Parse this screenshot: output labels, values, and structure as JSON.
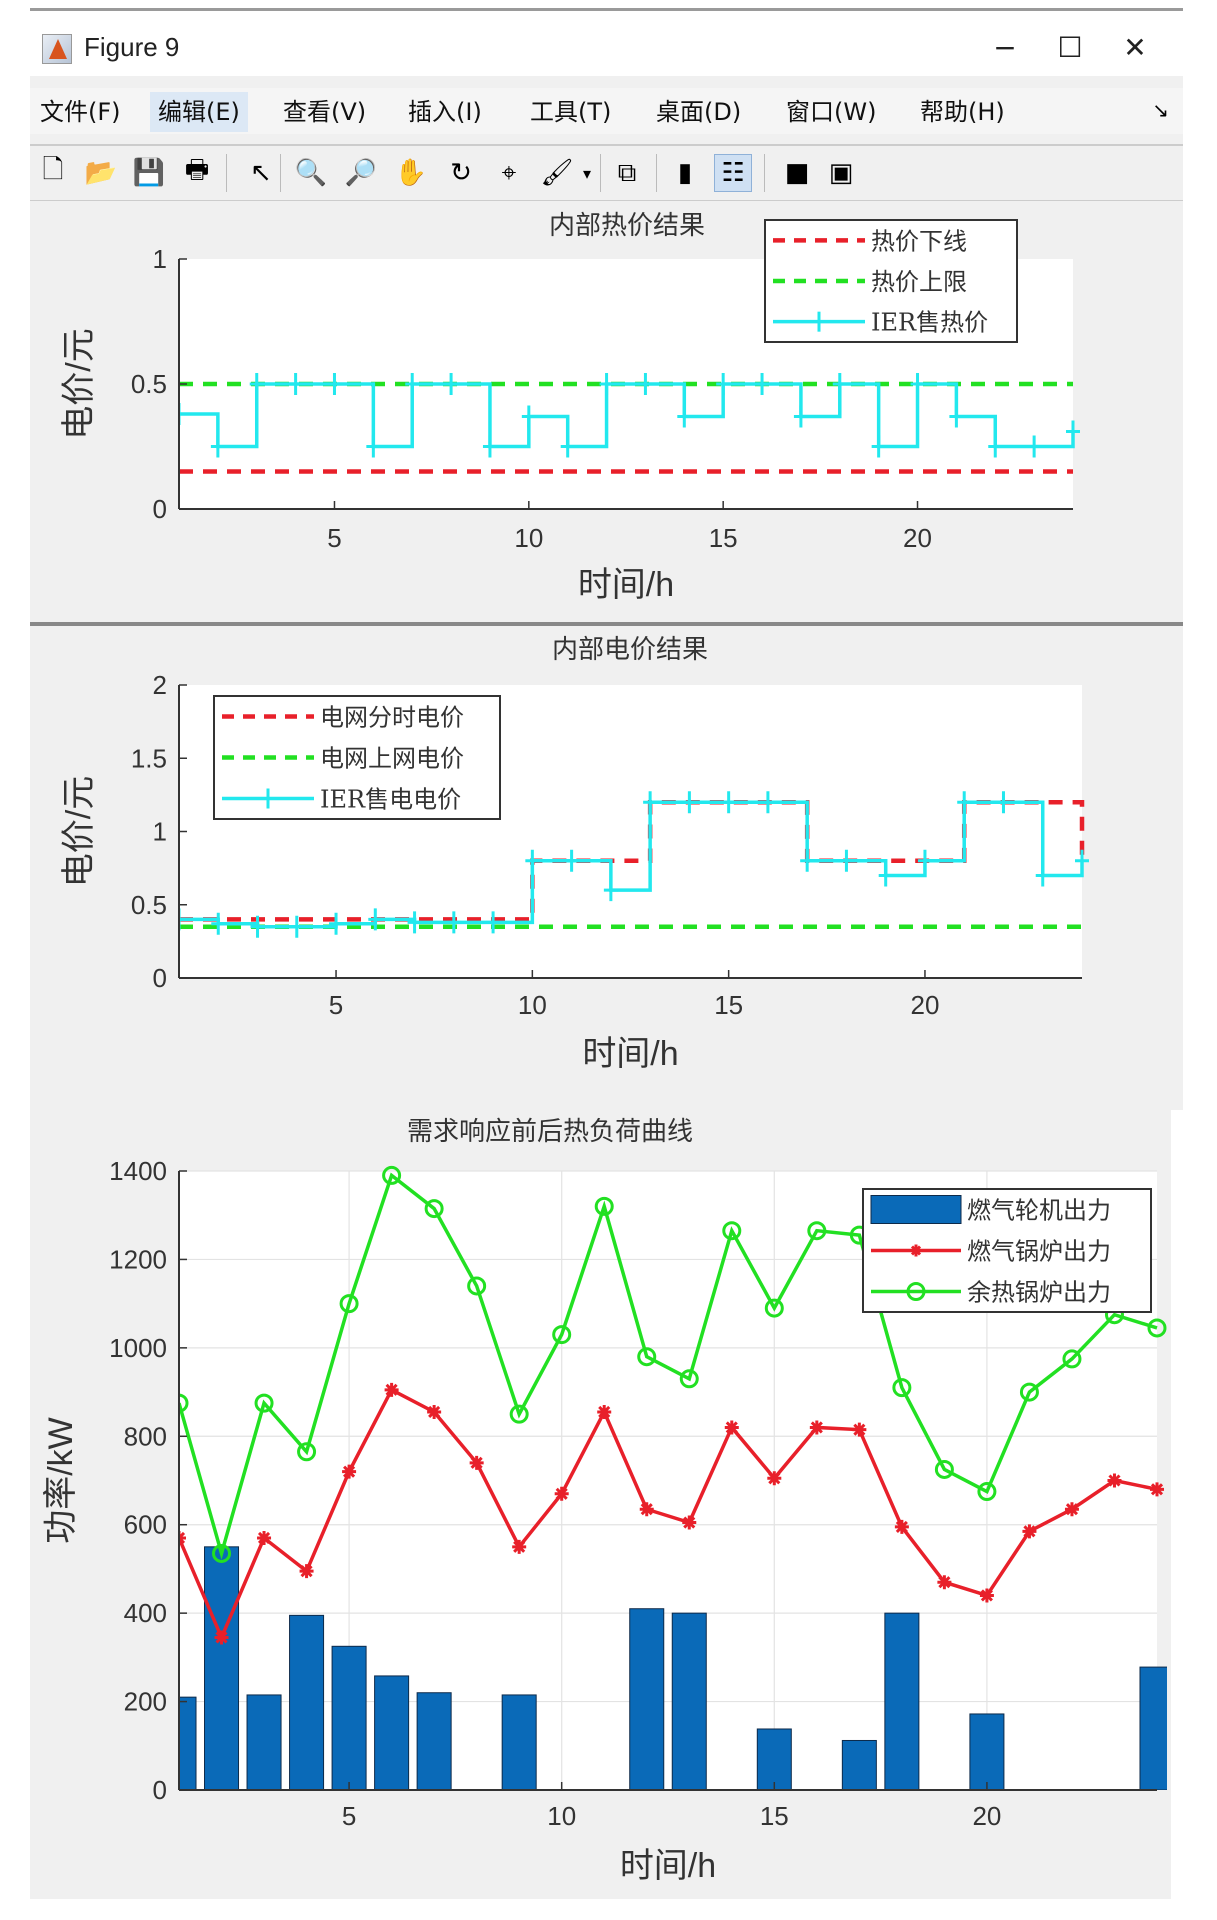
{
  "window": {
    "title": "Figure 9",
    "minimize": "−",
    "maximize": "☐",
    "close": "✕"
  },
  "menu": [
    "文件(F)",
    "编辑(E)",
    "查看(V)",
    "插入(I)",
    "工具(T)",
    "桌面(D)",
    "窗口(W)",
    "帮助(H)"
  ],
  "menu_more": "↘",
  "toolbar": [
    {
      "name": "new-figure",
      "glyph": "🗋"
    },
    {
      "name": "open-file",
      "glyph": "📂"
    },
    {
      "name": "save",
      "glyph": "💾"
    },
    {
      "name": "print",
      "glyph": "🖶"
    },
    {
      "name": "edit-plot",
      "glyph": "↖"
    },
    {
      "name": "zoom-in",
      "glyph": "🔍"
    },
    {
      "name": "zoom-out",
      "glyph": "🔎"
    },
    {
      "name": "pan",
      "glyph": "✋"
    },
    {
      "name": "rotate-3d",
      "glyph": "↻"
    },
    {
      "name": "data-cursor",
      "glyph": "⌖"
    },
    {
      "name": "brush",
      "glyph": "🖌"
    },
    {
      "name": "brush-dropdown",
      "glyph": "▾"
    },
    {
      "name": "link-plot",
      "glyph": "⧉"
    },
    {
      "name": "insert-colorbar",
      "glyph": "▮"
    },
    {
      "name": "insert-legend",
      "glyph": "☷"
    },
    {
      "name": "hide-plot-tools",
      "glyph": "■"
    },
    {
      "name": "show-plot-tools",
      "glyph": "▣"
    }
  ],
  "colors": {
    "red": "#e8202a",
    "green": "#22e022",
    "cyan": "#22e8ee",
    "bar": "#0a6ab8",
    "bar_edge": "#0d2a4a"
  },
  "chart_data": [
    {
      "type": "line",
      "title": "内部热价结果",
      "xlabel": "时间/h",
      "ylabel": "电价/元",
      "xlim": [
        1,
        24
      ],
      "ylim": [
        0,
        1
      ],
      "xticks": [
        5,
        10,
        15,
        20
      ],
      "yticks": [
        0,
        0.5,
        1
      ],
      "ytick_labels": [
        "0",
        "0.5",
        "1"
      ],
      "grid": false,
      "legend_placement": "top-right",
      "x": [
        1,
        2,
        3,
        4,
        5,
        6,
        7,
        8,
        9,
        10,
        11,
        12,
        13,
        14,
        15,
        16,
        17,
        18,
        19,
        20,
        21,
        22,
        23,
        24
      ],
      "series": [
        {
          "name": "热价下线",
          "style": "dashed-stairs",
          "color": "#e8202a",
          "values": [
            0.15,
            0.15,
            0.15,
            0.15,
            0.15,
            0.15,
            0.15,
            0.15,
            0.15,
            0.15,
            0.15,
            0.15,
            0.15,
            0.15,
            0.15,
            0.15,
            0.15,
            0.15,
            0.15,
            0.15,
            0.15,
            0.15,
            0.15,
            0.15
          ]
        },
        {
          "name": "热价上限",
          "style": "dashed-stairs",
          "color": "#22e022",
          "values": [
            0.5,
            0.5,
            0.5,
            0.5,
            0.5,
            0.5,
            0.5,
            0.5,
            0.5,
            0.5,
            0.5,
            0.5,
            0.5,
            0.5,
            0.5,
            0.5,
            0.5,
            0.5,
            0.5,
            0.5,
            0.5,
            0.5,
            0.5,
            0.5
          ]
        },
        {
          "name": "IER售热价",
          "style": "plus-stairs",
          "color": "#22e8ee",
          "values": [
            0.38,
            0.25,
            0.5,
            0.5,
            0.5,
            0.25,
            0.5,
            0.5,
            0.25,
            0.37,
            0.25,
            0.5,
            0.5,
            0.37,
            0.5,
            0.5,
            0.37,
            0.5,
            0.25,
            0.5,
            0.37,
            0.25,
            0.25,
            0.31
          ]
        }
      ]
    },
    {
      "type": "line",
      "title": "内部电价结果",
      "xlabel": "时间/h",
      "ylabel": "电价/元",
      "xlim": [
        1,
        24
      ],
      "ylim": [
        0,
        2
      ],
      "xticks": [
        5,
        10,
        15,
        20
      ],
      "yticks": [
        0,
        0.5,
        1,
        1.5,
        2
      ],
      "ytick_labels": [
        "0",
        "0.5",
        "1",
        "1.5",
        "2"
      ],
      "grid": false,
      "legend_placement": "top-left",
      "x": [
        1,
        2,
        3,
        4,
        5,
        6,
        7,
        8,
        9,
        10,
        11,
        12,
        13,
        14,
        15,
        16,
        17,
        18,
        19,
        20,
        21,
        22,
        23,
        24
      ],
      "series": [
        {
          "name": "电网分时电价",
          "style": "dashed-stairs",
          "color": "#e8202a",
          "values": [
            0.4,
            0.4,
            0.4,
            0.4,
            0.4,
            0.4,
            0.4,
            0.4,
            0.4,
            0.8,
            0.8,
            0.8,
            1.2,
            1.2,
            1.2,
            1.2,
            0.8,
            0.8,
            0.8,
            0.8,
            1.2,
            1.2,
            1.2,
            0.8
          ]
        },
        {
          "name": "电网上网电价",
          "style": "dashed-stairs",
          "color": "#22e022",
          "values": [
            0.35,
            0.35,
            0.35,
            0.35,
            0.35,
            0.35,
            0.35,
            0.35,
            0.35,
            0.35,
            0.35,
            0.35,
            0.35,
            0.35,
            0.35,
            0.35,
            0.35,
            0.35,
            0.35,
            0.35,
            0.35,
            0.35,
            0.35,
            0.35
          ]
        },
        {
          "name": "IER售电电价",
          "style": "plus-stairs",
          "color": "#22e8ee",
          "values": [
            0.4,
            0.37,
            0.35,
            0.35,
            0.37,
            0.4,
            0.38,
            0.38,
            0.38,
            0.8,
            0.8,
            0.6,
            1.2,
            1.2,
            1.2,
            1.2,
            0.8,
            0.8,
            0.7,
            0.8,
            1.2,
            1.2,
            0.7,
            0.8
          ]
        }
      ]
    },
    {
      "type": "bar+line",
      "title": "需求响应前后热负荷曲线",
      "xlabel": "时间/h",
      "ylabel": "功率/kW",
      "xlim": [
        1,
        24
      ],
      "ylim": [
        0,
        1400
      ],
      "xticks": [
        5,
        10,
        15,
        20
      ],
      "yticks": [
        0,
        200,
        400,
        600,
        800,
        1000,
        1200,
        1400
      ],
      "ytick_labels": [
        "0",
        "200",
        "400",
        "600",
        "800",
        "1000",
        "1200",
        "1400"
      ],
      "grid": true,
      "legend_placement": "top-right",
      "x": [
        1,
        2,
        3,
        4,
        5,
        6,
        7,
        8,
        9,
        10,
        11,
        12,
        13,
        14,
        15,
        16,
        17,
        18,
        19,
        20,
        21,
        22,
        23,
        24
      ],
      "series": [
        {
          "name": "燃气轮机出力",
          "style": "bar",
          "color": "#0a6ab8",
          "values": [
            210,
            550,
            215,
            395,
            325,
            258,
            220,
            0,
            215,
            0,
            0,
            410,
            400,
            0,
            138,
            0,
            112,
            400,
            0,
            172,
            0,
            0,
            0,
            278
          ]
        },
        {
          "name": "燃气锅炉出力",
          "style": "star-line",
          "color": "#e8202a",
          "values": [
            570,
            345,
            570,
            495,
            720,
            905,
            855,
            740,
            550,
            670,
            855,
            635,
            605,
            820,
            705,
            820,
            815,
            595,
            470,
            440,
            585,
            635,
            700,
            680
          ]
        },
        {
          "name": "余热锅炉出力",
          "style": "circle-line",
          "color": "#22e022",
          "values": [
            875,
            535,
            875,
            765,
            1100,
            1390,
            1315,
            1140,
            850,
            1030,
            1320,
            980,
            930,
            1265,
            1090,
            1265,
            1255,
            910,
            725,
            675,
            900,
            975,
            1075,
            1045
          ]
        }
      ]
    }
  ]
}
